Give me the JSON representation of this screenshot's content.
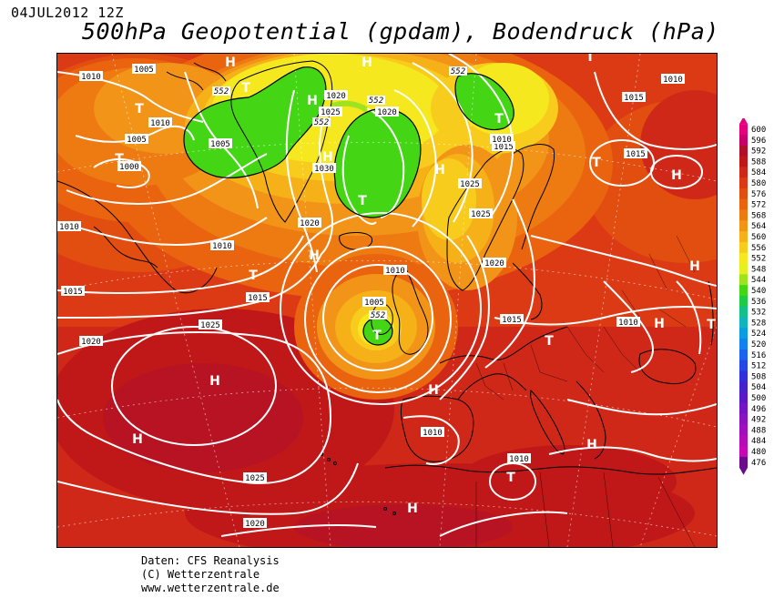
{
  "header": {
    "datetime": "04JUL2012 12Z",
    "title": "500hPa Geopotential (gpdam), Bodendruck (hPa)"
  },
  "legend": {
    "levels": [
      "600",
      "596",
      "592",
      "588",
      "584",
      "580",
      "576",
      "572",
      "568",
      "564",
      "560",
      "556",
      "552",
      "548",
      "544",
      "540",
      "536",
      "532",
      "528",
      "524",
      "520",
      "516",
      "512",
      "508",
      "504",
      "500",
      "496",
      "492",
      "488",
      "484",
      "480",
      "476"
    ],
    "colors": [
      "#e6007e",
      "#c8006a",
      "#b0102a",
      "#c01818",
      "#d02818",
      "#dc3a14",
      "#e24e10",
      "#ea6410",
      "#ee7a12",
      "#f29418",
      "#f6b018",
      "#f8cc1c",
      "#f6e81e",
      "#e6f020",
      "#9fe21e",
      "#44d614",
      "#1ecb46",
      "#14c08a",
      "#10b4bc",
      "#0c9ce2",
      "#1280f0",
      "#1c62f0",
      "#2448e8",
      "#3030dc",
      "#4422cc",
      "#5a18c8",
      "#7414c4",
      "#8c14c0",
      "#a010bc",
      "#b40cb8",
      "#c808b4",
      "#6a0c8c"
    ]
  },
  "map": {
    "isobar_labels": [
      "1010",
      "1005",
      "1010",
      "1005",
      "1000",
      "1020",
      "1025",
      "1020",
      "1030",
      "1020",
      "1010",
      "1005",
      "1010",
      "1015",
      "1015",
      "1015",
      "1010",
      "1025",
      "1025",
      "1020",
      "1010",
      "1010",
      "1015",
      "1015",
      "1020",
      "1025",
      "1010",
      "1005",
      "1015",
      "1010",
      "1010",
      "1025",
      "1020"
    ],
    "contour_552_labels": [
      "552",
      "552",
      "552",
      "552",
      "552"
    ],
    "pressure_centers": [
      "H",
      "T",
      "T",
      "H",
      "T",
      "H",
      "H",
      "T",
      "H",
      "H",
      "T",
      "T",
      "H",
      "H",
      "T",
      "H",
      "H",
      "T",
      "H",
      "T",
      "H",
      "T",
      "T",
      "H",
      "T",
      "H"
    ]
  },
  "footer": {
    "line1": "Daten: CFS Reanalysis",
    "line2": "(C) Wetterzentrale",
    "line3": "www.wetterzentrale.de"
  }
}
